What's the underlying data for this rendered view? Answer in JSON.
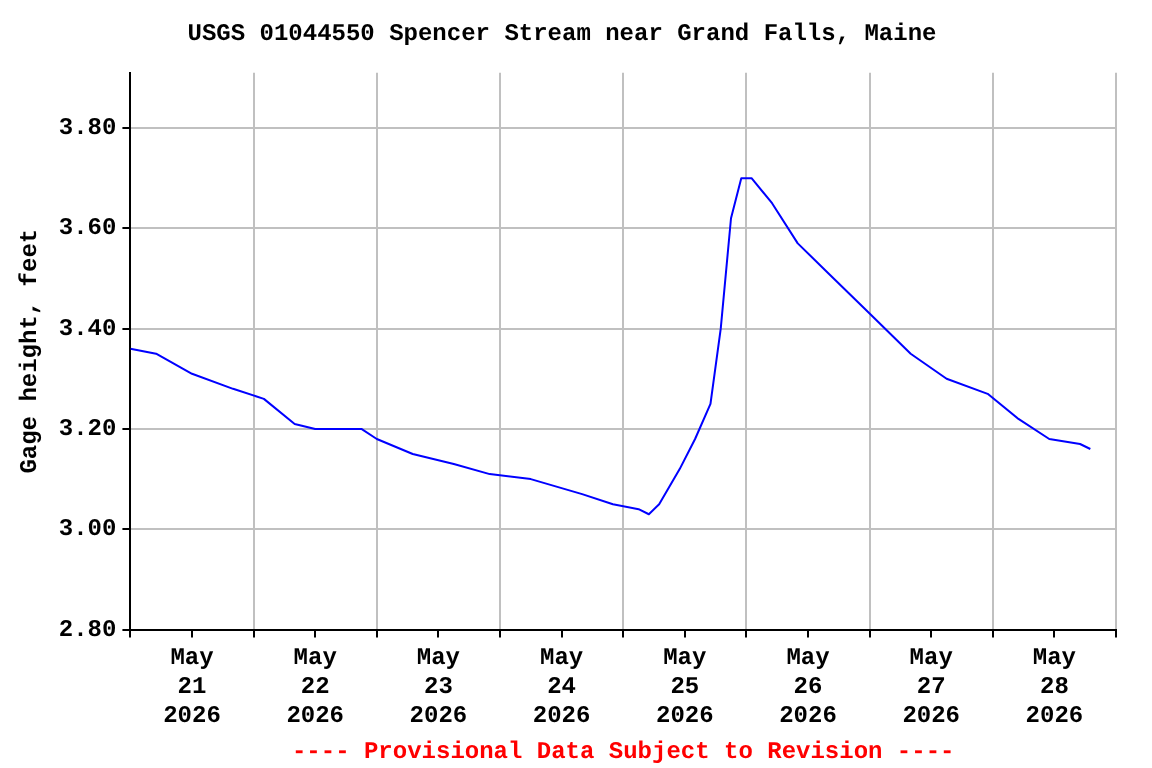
{
  "chart_data": {
    "type": "line",
    "title": "USGS 01044550 Spencer Stream near Grand Falls, Maine",
    "ylabel": "Gage height, feet",
    "annotations": [
      "---- Provisional Data Subject to Revision ----"
    ],
    "x": [
      "2026-05-21T00:00",
      "2026-05-21T05:00",
      "2026-05-21T12:00",
      "2026-05-21T20:00",
      "2026-05-22T02:00",
      "2026-05-22T08:00",
      "2026-05-22T12:00",
      "2026-05-22T21:00",
      "2026-05-23T00:00",
      "2026-05-23T07:00",
      "2026-05-23T15:00",
      "2026-05-23T22:00",
      "2026-05-24T06:00",
      "2026-05-24T16:00",
      "2026-05-24T22:00",
      "2026-05-25T03:00",
      "2026-05-25T05:00",
      "2026-05-25T07:00",
      "2026-05-25T11:00",
      "2026-05-25T14:00",
      "2026-05-25T17:00",
      "2026-05-25T19:00",
      "2026-05-25T21:00",
      "2026-05-25T23:00",
      "2026-05-26T01:00",
      "2026-05-26T05:00",
      "2026-05-26T10:00",
      "2026-05-26T16:00",
      "2026-05-27T00:00",
      "2026-05-27T08:00",
      "2026-05-27T15:00",
      "2026-05-27T23:00",
      "2026-05-28T05:00",
      "2026-05-28T11:00",
      "2026-05-28T17:00",
      "2026-05-28T19:00"
    ],
    "series": [
      {
        "color": "#0000ff",
        "values": [
          3.36,
          3.35,
          3.31,
          3.28,
          3.26,
          3.21,
          3.2,
          3.2,
          3.18,
          3.15,
          3.13,
          3.11,
          3.1,
          3.07,
          3.05,
          3.04,
          3.03,
          3.05,
          3.12,
          3.18,
          3.25,
          3.4,
          3.62,
          3.7,
          3.7,
          3.65,
          3.57,
          3.51,
          3.43,
          3.35,
          3.3,
          3.27,
          3.22,
          3.18,
          3.17,
          3.16
        ]
      }
    ],
    "xlim": [
      "2026-05-21T00:00",
      "2026-05-29T00:00"
    ],
    "xticks": [
      {
        "value": "2026-05-21T00:00",
        "label": null
      },
      {
        "value": "2026-05-21T12:00",
        "label": "May 21 2026"
      },
      {
        "value": "2026-05-22T00:00",
        "label": null
      },
      {
        "value": "2026-05-22T12:00",
        "label": "May 22 2026"
      },
      {
        "value": "2026-05-23T00:00",
        "label": null
      },
      {
        "value": "2026-05-23T12:00",
        "label": "May 23 2026"
      },
      {
        "value": "2026-05-24T00:00",
        "label": null
      },
      {
        "value": "2026-05-24T12:00",
        "label": "May 24 2026"
      },
      {
        "value": "2026-05-25T00:00",
        "label": null
      },
      {
        "value": "2026-05-25T12:00",
        "label": "May 25 2026"
      },
      {
        "value": "2026-05-26T00:00",
        "label": null
      },
      {
        "value": "2026-05-26T12:00",
        "label": "May 26 2026"
      },
      {
        "value": "2026-05-27T00:00",
        "label": null
      },
      {
        "value": "2026-05-27T12:00",
        "label": "May 27 2026"
      },
      {
        "value": "2026-05-28T00:00",
        "label": null
      },
      {
        "value": "2026-05-28T12:00",
        "label": "May 28 2026"
      },
      {
        "value": "2026-05-29T00:00",
        "label": null
      }
    ],
    "ylim": [
      2.8,
      3.91
    ],
    "yticks": [
      {
        "value": 2.8,
        "label": "2.80"
      },
      {
        "value": 3.0,
        "label": "3.00"
      },
      {
        "value": 3.2,
        "label": "3.20"
      },
      {
        "value": 3.4,
        "label": "3.40"
      },
      {
        "value": 3.6,
        "label": "3.60"
      },
      {
        "value": 3.8,
        "label": "3.80"
      }
    ],
    "grid": true,
    "legend": false,
    "marker": "none",
    "line_style": "solid"
  }
}
